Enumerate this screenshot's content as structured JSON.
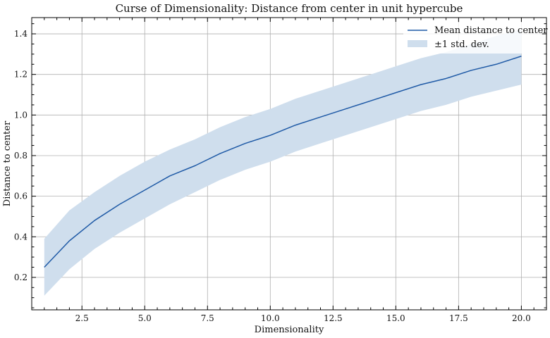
{
  "chart_data": {
    "type": "line",
    "title": "Curse of Dimensionality: Distance from center in unit hypercube",
    "xlabel": "Dimensionality",
    "ylabel": "Distance to center",
    "xlim": [
      0.5,
      21.0
    ],
    "ylim": [
      0.04,
      1.48
    ],
    "xticks": [
      2.5,
      5.0,
      7.5,
      10.0,
      12.5,
      15.0,
      17.5,
      20.0
    ],
    "xtick_labels": [
      "2.5",
      "5.0",
      "7.5",
      "10.0",
      "12.5",
      "15.0",
      "17.5",
      "20.0"
    ],
    "yticks": [
      0.2,
      0.4,
      0.6,
      0.8,
      1.0,
      1.2,
      1.4
    ],
    "ytick_labels": [
      "0.2",
      "0.4",
      "0.6",
      "0.8",
      "1.0",
      "1.2",
      "1.4"
    ],
    "grid": true,
    "legend": {
      "placement": "top-right"
    },
    "x": [
      1,
      2,
      3,
      4,
      5,
      6,
      7,
      8,
      9,
      10,
      11,
      12,
      13,
      14,
      15,
      16,
      17,
      18,
      19,
      20
    ],
    "series": [
      {
        "name": "Mean distance to center",
        "kind": "line",
        "color": "#1f5aa6",
        "values": [
          0.25,
          0.38,
          0.48,
          0.56,
          0.63,
          0.7,
          0.75,
          0.81,
          0.86,
          0.9,
          0.95,
          0.99,
          1.03,
          1.07,
          1.11,
          1.15,
          1.18,
          1.22,
          1.25,
          1.29
        ]
      },
      {
        "name": "±1 std. dev.",
        "kind": "band",
        "color": "#cfdeed",
        "lower": [
          0.11,
          0.24,
          0.34,
          0.42,
          0.49,
          0.56,
          0.62,
          0.68,
          0.73,
          0.77,
          0.82,
          0.86,
          0.9,
          0.94,
          0.98,
          1.02,
          1.05,
          1.09,
          1.12,
          1.15
        ],
        "upper": [
          0.39,
          0.53,
          0.62,
          0.7,
          0.77,
          0.83,
          0.88,
          0.94,
          0.99,
          1.03,
          1.08,
          1.12,
          1.16,
          1.2,
          1.24,
          1.28,
          1.31,
          1.35,
          1.39,
          1.42
        ]
      }
    ]
  }
}
